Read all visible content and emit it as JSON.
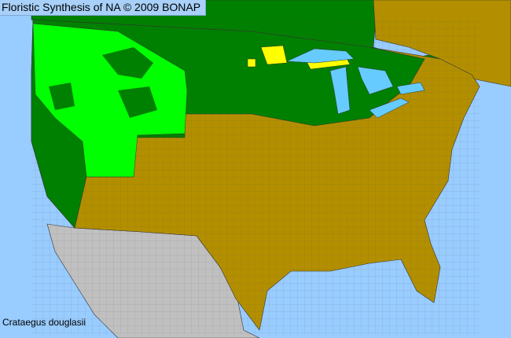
{
  "header": {
    "title": "Floristic Synthesis of NA © 2009 BONAP"
  },
  "map": {
    "species": "Crataegus douglasii",
    "colors": {
      "ocean": "#99ccff",
      "lakes": "#66ccff",
      "present_native_state": "#008000",
      "present_native_county": "#00ff00",
      "not_present": "#b38f00",
      "rare_or_other": "#ffff00",
      "outside_region": "#c0c0c0"
    }
  }
}
